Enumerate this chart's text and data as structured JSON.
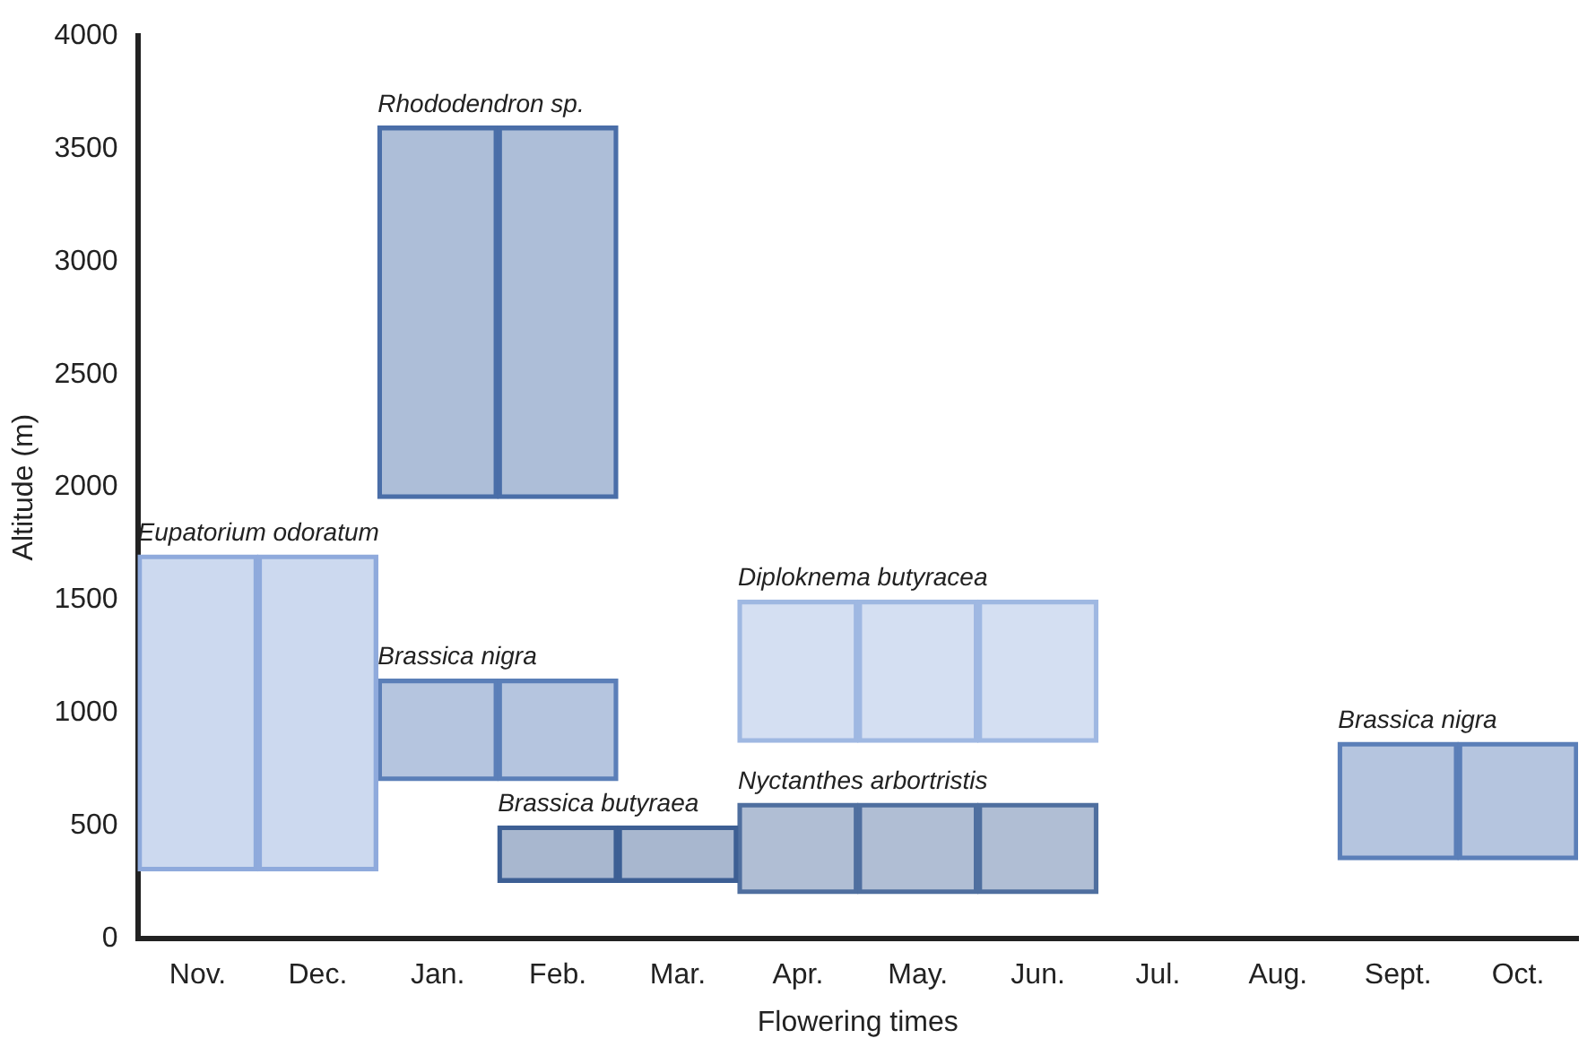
{
  "chart_data": {
    "type": "bar",
    "xlabel": "Flowering times",
    "ylabel": "Altitude (m)",
    "categories": [
      "Nov.",
      "Dec.",
      "Jan.",
      "Feb.",
      "Mar.",
      "Apr.",
      "May.",
      "Jun.",
      "Jul.",
      "Aug.",
      "Sept.",
      "Oct."
    ],
    "ylim": [
      0,
      4000
    ],
    "yticks": [
      0,
      500,
      1000,
      1500,
      2000,
      2500,
      3000,
      3500,
      4000
    ],
    "grid": false,
    "legend": false,
    "series": [
      {
        "name": "Eupatorium odoratum",
        "color": "#8faadc",
        "base": [
          300,
          300,
          null,
          null,
          null,
          null,
          null,
          null,
          null,
          null,
          null,
          null
        ],
        "values": [
          1400,
          1400,
          null,
          null,
          null,
          null,
          null,
          null,
          null,
          null,
          null,
          null
        ]
      },
      {
        "name": "Rhododendron sp.",
        "color": "#4a6ea8",
        "base": [
          null,
          null,
          1950,
          1950,
          null,
          null,
          null,
          null,
          null,
          null,
          null,
          null
        ],
        "values": [
          null,
          null,
          1650,
          1650,
          null,
          null,
          null,
          null,
          null,
          null,
          null,
          null
        ]
      },
      {
        "name": "Brassica nigra",
        "color": "#5b7fb8",
        "base": [
          null,
          null,
          700,
          700,
          null,
          null,
          null,
          null,
          null,
          null,
          350,
          350
        ],
        "values": [
          null,
          null,
          450,
          450,
          null,
          null,
          null,
          null,
          null,
          null,
          520,
          520
        ]
      },
      {
        "name": "Brassica butyraea",
        "color": "#3d5f94",
        "base": [
          null,
          null,
          null,
          250,
          250,
          null,
          null,
          null,
          null,
          null,
          null,
          null
        ],
        "values": [
          null,
          null,
          null,
          250,
          250,
          null,
          null,
          null,
          null,
          null,
          null,
          null
        ]
      },
      {
        "name": "Diploknema butyracea",
        "color": "#9fb8e2",
        "base": [
          null,
          null,
          null,
          null,
          null,
          870,
          870,
          870,
          null,
          null,
          null,
          null
        ],
        "values": [
          null,
          null,
          null,
          null,
          null,
          630,
          630,
          630,
          null,
          null,
          null,
          null
        ]
      },
      {
        "name": "Nyctanthes arbortristis",
        "color": "#4f6f9f",
        "base": [
          null,
          null,
          null,
          null,
          null,
          200,
          200,
          200,
          null,
          null,
          null,
          null
        ],
        "values": [
          null,
          null,
          null,
          null,
          null,
          400,
          400,
          400,
          null,
          null,
          null,
          null
        ]
      }
    ]
  }
}
